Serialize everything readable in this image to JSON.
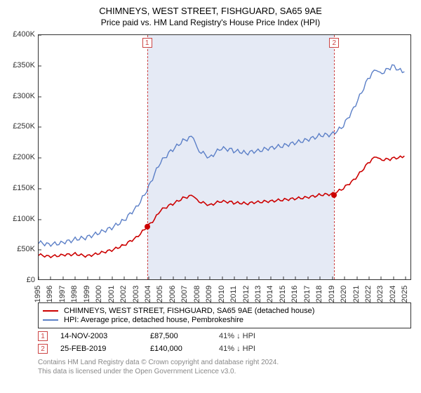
{
  "title": "CHIMNEYS, WEST STREET, FISHGUARD, SA65 9AE",
  "subtitle": "Price paid vs. HM Land Registry's House Price Index (HPI)",
  "chart": {
    "type": "line",
    "xlim": [
      1995,
      2025.5
    ],
    "ylim": [
      0,
      400000
    ],
    "ytick_step": 50000,
    "ytick_labels": [
      "£0",
      "£50K",
      "£100K",
      "£150K",
      "£200K",
      "£250K",
      "£300K",
      "£350K",
      "£400K"
    ],
    "xtick_step": 1,
    "xtick_labels": [
      "1995",
      "1996",
      "1997",
      "1998",
      "1999",
      "2000",
      "2001",
      "2002",
      "2003",
      "2004",
      "2005",
      "2006",
      "2007",
      "2008",
      "2009",
      "2010",
      "2011",
      "2012",
      "2013",
      "2014",
      "2015",
      "2016",
      "2017",
      "2018",
      "2019",
      "2020",
      "2021",
      "2022",
      "2023",
      "2024",
      "2025"
    ],
    "background_color": "#ffffff",
    "axis_color": "#333333",
    "tick_fontsize": 11,
    "marker_band_color": "#e5eaf5",
    "marker_line_color": "#cc4444",
    "series1": {
      "label": "CHIMNEYS, WEST STREET, FISHGUARD, SA65 9AE (detached house)",
      "color": "#cc0000",
      "line_width": 1.6,
      "points": [
        [
          1995,
          40000
        ],
        [
          1996,
          38000
        ],
        [
          1997,
          41000
        ],
        [
          1998,
          43000
        ],
        [
          1999,
          40000
        ],
        [
          2000,
          45000
        ],
        [
          2001,
          50000
        ],
        [
          2002,
          58000
        ],
        [
          2003,
          70000
        ],
        [
          2003.87,
          87500
        ],
        [
          2004.5,
          100000
        ],
        [
          2005,
          115000
        ],
        [
          2006,
          125000
        ],
        [
          2007,
          135000
        ],
        [
          2007.7,
          140000
        ],
        [
          2008,
          130000
        ],
        [
          2009,
          122000
        ],
        [
          2010,
          128000
        ],
        [
          2011,
          125000
        ],
        [
          2012,
          123000
        ],
        [
          2013,
          125000
        ],
        [
          2014,
          126000
        ],
        [
          2015,
          128000
        ],
        [
          2016,
          130000
        ],
        [
          2017,
          132000
        ],
        [
          2018,
          136000
        ],
        [
          2019.15,
          140000
        ],
        [
          2020,
          148000
        ],
        [
          2021,
          165000
        ],
        [
          2022,
          190000
        ],
        [
          2022.7,
          200000
        ],
        [
          2023,
          195000
        ],
        [
          2024,
          198000
        ],
        [
          2025,
          202000
        ]
      ]
    },
    "series2": {
      "label": "HPI: Average price, detached house, Pembrokeshire",
      "color": "#5b7fc7",
      "line_width": 1.4,
      "points": [
        [
          1995,
          60000
        ],
        [
          1996,
          58000
        ],
        [
          1997,
          62000
        ],
        [
          1998,
          68000
        ],
        [
          1999,
          72000
        ],
        [
          2000,
          80000
        ],
        [
          2001,
          88000
        ],
        [
          2002,
          100000
        ],
        [
          2003,
          120000
        ],
        [
          2003.87,
          148000
        ],
        [
          2004.5,
          175000
        ],
        [
          2005,
          195000
        ],
        [
          2006,
          215000
        ],
        [
          2007,
          230000
        ],
        [
          2007.7,
          238000
        ],
        [
          2008,
          215000
        ],
        [
          2009,
          200000
        ],
        [
          2010,
          215000
        ],
        [
          2011,
          210000
        ],
        [
          2012,
          205000
        ],
        [
          2013,
          208000
        ],
        [
          2014,
          212000
        ],
        [
          2015,
          215000
        ],
        [
          2016,
          220000
        ],
        [
          2017,
          225000
        ],
        [
          2018,
          232000
        ],
        [
          2019.15,
          238000
        ],
        [
          2020,
          250000
        ],
        [
          2021,
          285000
        ],
        [
          2022,
          328000
        ],
        [
          2022.7,
          342000
        ],
        [
          2023,
          335000
        ],
        [
          2024,
          350000
        ],
        [
          2025,
          340000
        ]
      ]
    },
    "sale_markers": [
      {
        "num": "1",
        "x": 2003.87,
        "y": 87500
      },
      {
        "num": "2",
        "x": 2019.15,
        "y": 140000
      }
    ],
    "sale_point_color": "#cc0000"
  },
  "legend": {
    "series1": "CHIMNEYS, WEST STREET, FISHGUARD, SA65 9AE (detached house)",
    "series2": "HPI: Average price, detached house, Pembrokeshire"
  },
  "sales": [
    {
      "num": "1",
      "date": "14-NOV-2003",
      "price": "£87,500",
      "note": "41% ↓ HPI"
    },
    {
      "num": "2",
      "date": "25-FEB-2019",
      "price": "£140,000",
      "note": "41% ↓ HPI"
    }
  ],
  "footer": {
    "line1": "Contains HM Land Registry data © Crown copyright and database right 2024.",
    "line2": "This data is licensed under the Open Government Licence v3.0."
  }
}
